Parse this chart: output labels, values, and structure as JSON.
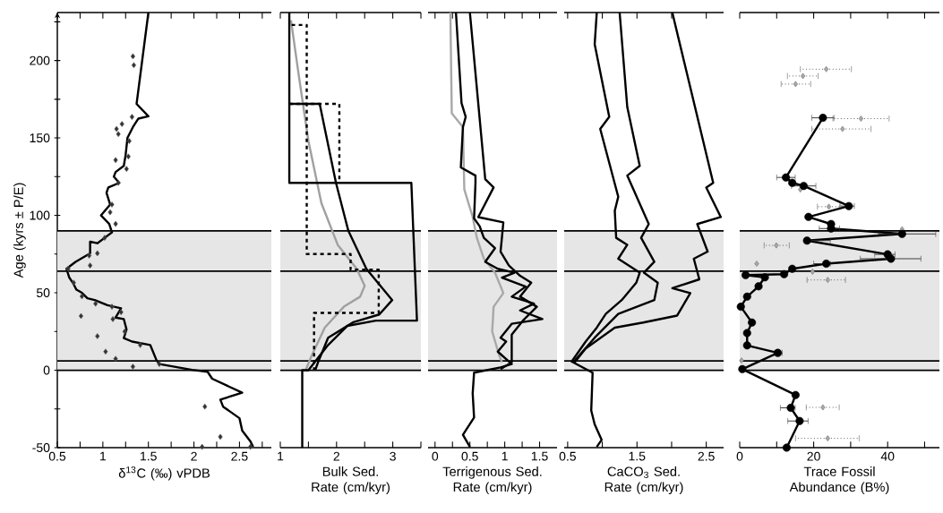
{
  "chart_data": [
    {
      "type": "line",
      "xlabel": "δ$^{13}$C (‰) vPDB",
      "ylabel": "Age (kyrs ± P/E)",
      "xlim": [
        0.5,
        2.85
      ],
      "ylim": [
        -50,
        231
      ],
      "xticks": [
        0.5,
        {
          "value": 0.75,
          "label": null
        },
        1,
        {
          "value": 1.25,
          "label": null
        },
        1.5,
        {
          "value": 1.75,
          "label": null
        },
        2,
        {
          "value": 2.25,
          "label": null
        },
        2.5,
        {
          "value": 2.75,
          "label": null
        }
      ],
      "yticks": [
        -50,
        {
          "value": -25,
          "label": null
        },
        0,
        {
          "value": 25,
          "label": null
        },
        50,
        {
          "value": 75,
          "label": null
        },
        100,
        {
          "value": 125,
          "label": null
        },
        150,
        {
          "value": 175,
          "label": null
        },
        200,
        {
          "value": 225,
          "label": null
        }
      ],
      "bands": [
        {
          "axis": "y",
          "from": 0,
          "to": 90,
          "color": "#e6e6e6"
        }
      ],
      "ref_lines": [
        {
          "axis": "y",
          "value": 90,
          "color": "#000000"
        },
        {
          "axis": "y",
          "value": 64,
          "color": "#000000"
        },
        {
          "axis": "y",
          "value": 6,
          "color": "#000000"
        },
        {
          "axis": "y",
          "value": 0,
          "color": "#000000"
        }
      ],
      "series": [
        {
          "type": "line",
          "color": "#000000",
          "x": [
            1.5,
            1.37,
            1.5,
            1.39,
            1.33,
            1.27,
            1.25,
            1.23,
            1.14,
            1.12,
            1.18,
            1.06,
            1.04,
            1.08,
            0.98,
            1.07,
            1.1,
            1.02,
            0.94,
            0.86,
            0.86,
            0.7,
            0.6,
            0.63,
            0.67,
            0.71,
            0.77,
            0.83,
            0.91,
            1.05,
            1.2,
            1.14,
            1.23,
            1.26,
            1.23,
            1.32,
            1.52,
            1.59,
            1.62,
            1.98,
            2.15,
            2.2,
            2.53,
            2.29,
            2.32,
            2.5,
            2.53,
            2.62,
            2.65
          ],
          "values": [
            231,
            172,
            164,
            162.5,
            157,
            150,
            139,
            132,
            128,
            125,
            121,
            118,
            114.5,
            107,
            100,
            94.5,
            89,
            85.5,
            82,
            83,
            75.5,
            70,
            65.5,
            60,
            56.5,
            52,
            50,
            46.5,
            45.3,
            42,
            40,
            34,
            33,
            26.3,
            20.8,
            18.5,
            16.3,
            6.3,
            4,
            0.2,
            -1,
            -5.5,
            -14.5,
            -19,
            -23.5,
            -31,
            -39,
            -46,
            -49.5
          ]
        },
        {
          "type": "scatter",
          "color": "#333333",
          "marker": "diamond",
          "x": [
            1.33,
            1.34,
            1.21,
            1.15,
            1.17,
            1.32,
            1.29,
            1.28,
            1.26,
            1.14,
            1.17,
            1.1,
            1.08,
            1.14,
            1.02,
            0.94,
            0.85,
            0.86,
            0.62,
            0.68,
            0.77,
            0.76,
            0.92,
            1.1,
            1.2,
            1.11,
            1.24,
            0.94,
            1.03,
            1.41,
            1.14,
            1.62,
            1.33,
            2.12,
            2.29,
            2.09,
            2.62
          ],
          "values": [
            202.7,
            197,
            159,
            155.8,
            152.5,
            163.6,
            148,
            138,
            130,
            135.7,
            121,
            107,
            102,
            94.5,
            85.5,
            75.5,
            74,
            67.6,
            65.5,
            56.5,
            47.7,
            35,
            43,
            41,
            37.5,
            33,
            25,
            22,
            12,
            16.3,
            7.4,
            4,
            2.3,
            -23.5,
            -43,
            -49.5,
            -49.5
          ]
        }
      ]
    },
    {
      "type": "line",
      "xlabel": "Bulk Sed. Rate (cm/kyr)",
      "xlim": [
        1,
        3.5
      ],
      "ylim": [
        -50,
        231
      ],
      "tick_labels": "x",
      "xticks": [
        1,
        {
          "value": 1.5,
          "label": null
        },
        2,
        {
          "value": 2.5,
          "label": null
        },
        3,
        {
          "value": 3.5,
          "label": null
        }
      ],
      "bands": [
        {
          "axis": "y",
          "from": 0,
          "to": 90,
          "color": "#e6e6e6"
        }
      ],
      "ref_lines": [
        {
          "axis": "y",
          "value": 90,
          "color": "#000000"
        },
        {
          "axis": "y",
          "value": 64,
          "color": "#000000"
        },
        {
          "axis": "y",
          "value": 6,
          "color": "#000000"
        },
        {
          "axis": "y",
          "value": 0,
          "color": "#000000"
        }
      ],
      "series": [
        {
          "type": "line",
          "color": "#a0a0a0",
          "x": [
            1.19,
            1.33,
            1.5,
            1.73,
            2.02,
            2.36,
            2.5,
            2.42,
            2.13,
            1.79,
            1.56,
            1.45
          ],
          "values": [
            226,
            190,
            148,
            108,
            81,
            65.5,
            54.5,
            47.5,
            41,
            27.5,
            9.6,
            0
          ]
        },
        {
          "type": "line",
          "color": "#000000",
          "line_style": "dashed",
          "x": [
            1.2,
            1.47,
            1.47,
            2.25,
            2.25,
            2.75,
            2.75,
            1.6,
            1.6
          ],
          "values": [
            223,
            223,
            75,
            75,
            65,
            65,
            37,
            37,
            0
          ]
        },
        {
          "type": "line",
          "color": "#000000",
          "line_style": "dashed",
          "x": [
            1.16,
            2.05,
            2.05
          ],
          "values": [
            172,
            172,
            121
          ]
        },
        {
          "type": "line",
          "color": "#000000",
          "x": [
            1.16,
            1.16,
            3.33,
            3.43,
            2.7,
            2.19,
            1.85,
            1.5,
            1.39,
            1.39
          ],
          "values": [
            231,
            121,
            121,
            32,
            32,
            28.6,
            16.3,
            0,
            0,
            -50
          ]
        },
        {
          "type": "line",
          "color": "#000000",
          "x": [
            1.16,
            1.7,
            1.99,
            2.21,
            2.53,
            2.99,
            2.76,
            2.3,
            1.85,
            1.67,
            1.62
          ],
          "values": [
            172,
            172,
            121,
            90,
            65.5,
            45.3,
            36,
            31,
            21,
            5,
            0
          ]
        }
      ]
    },
    {
      "type": "line",
      "xlabel": "Terrigenous Sed. Rate (cm/kyr)",
      "xlim": [
        -0.1,
        1.75
      ],
      "ylim": [
        -50,
        231
      ],
      "tick_labels": "x",
      "xticks": [
        0,
        {
          "value": 0.25,
          "label": null
        },
        0.5,
        {
          "value": 0.75,
          "label": null
        },
        1,
        {
          "value": 1.25,
          "label": null
        },
        1.5
      ],
      "bands": [
        {
          "axis": "y",
          "from": 0,
          "to": 90,
          "color": "#e6e6e6"
        }
      ],
      "ref_lines": [
        {
          "axis": "y",
          "value": 90,
          "color": "#000000"
        },
        {
          "axis": "y",
          "value": 64,
          "color": "#000000"
        },
        {
          "axis": "y",
          "value": 6,
          "color": "#000000"
        },
        {
          "axis": "y",
          "value": 0,
          "color": "#000000"
        }
      ],
      "series": [
        {
          "type": "line",
          "color": "#a8a8a8",
          "x": [
            0.22,
            0.24,
            0.4,
            0.42,
            0.54,
            0.6,
            0.7,
            0.86,
            0.98,
            0.84,
            0.82,
            0.92,
            0.96
          ],
          "values": [
            231,
            166,
            157,
            116.7,
            98.9,
            85.5,
            72,
            63,
            49.8,
            41,
            25,
            9.6,
            5.1
          ]
        },
        {
          "type": "line",
          "color": "#000000",
          "x": [
            0.5,
            0.72,
            0.84,
            0.62,
            0.98,
            0.94,
            1.06,
            1.22,
            1.38,
            1.22,
            1.46,
            1.26,
            1.1,
            1.1,
            0.94
          ],
          "values": [
            231,
            123.4,
            118,
            98.9,
            95.5,
            76.6,
            67.6,
            61,
            56.5,
            47.5,
            41,
            32,
            23,
            5.1,
            0.7
          ]
        },
        {
          "type": "line",
          "color": "#000000",
          "x": [
            0.3,
            0.38,
            0.44,
            0.4,
            0.37,
            0.58,
            0.58,
            0.56,
            0.64,
            0.7,
            0.86,
            0.72,
            0.9,
            1.14,
            0.96,
            1.3,
            1.1,
            1.42,
            1.22,
            1.54,
            1.1,
            0.94,
            1.02,
            0.9,
            1.1,
            0.94,
            0.56,
            0.54,
            0.56,
            0.4,
            0.5
          ],
          "values": [
            231,
            172.5,
            163.6,
            157,
            131,
            125.7,
            121,
            98,
            93,
            85.5,
            78.8,
            70,
            65.5,
            63,
            59.8,
            54,
            47.5,
            43,
            38.6,
            33,
            30,
            21,
            18.5,
            12,
            4,
            1.8,
            -1.6,
            -15,
            -30.6,
            -41.7,
            -49.5
          ]
        }
      ]
    },
    {
      "type": "line",
      "xlabel": "CaCO$_{3}$ Sed. Rate (cm/kyr)",
      "xlim": [
        0.45,
        2.75
      ],
      "ylim": [
        -50,
        231
      ],
      "tick_labels": "x",
      "xticks": [
        0.5,
        {
          "value": 1,
          "label": null
        },
        1.5,
        {
          "value": 2,
          "label": null
        },
        2.5
      ],
      "bands": [
        {
          "axis": "y",
          "from": 0,
          "to": 90,
          "color": "#e6e6e6"
        }
      ],
      "ref_lines": [
        {
          "axis": "y",
          "value": 90,
          "color": "#000000"
        },
        {
          "axis": "y",
          "value": 64,
          "color": "#000000"
        },
        {
          "axis": "y",
          "value": 6,
          "color": "#000000"
        },
        {
          "axis": "y",
          "value": 0,
          "color": "#000000"
        }
      ],
      "series": [
        {
          "type": "line",
          "color": "#000000",
          "x": [
            0.92,
            0.89,
            1.1,
            0.97,
            1.23,
            1.18,
            1.2,
            1.36,
            1.23,
            1.54,
            1.49,
            1.28,
            1.05,
            0.92,
            0.76,
            0.55
          ],
          "values": [
            231,
            210.5,
            163.6,
            155.8,
            112,
            103,
            85.5,
            81,
            72,
            63,
            56.5,
            45.3,
            36.4,
            27.5,
            18.5,
            5.1
          ]
        },
        {
          "type": "line",
          "color": "#000000",
          "x": [
            1.25,
            1.36,
            1.54,
            1.36,
            1.67,
            1.56,
            1.75,
            1.6,
            1.8,
            1.75,
            1.23,
            0.89,
            0.58,
            0.86,
            0.84,
            0.89,
            0.99,
            0.92
          ],
          "values": [
            231,
            170,
            132,
            125.7,
            94.4,
            85.5,
            70,
            63,
            56.5,
            45.3,
            36.4,
            21,
            5.1,
            -1.6,
            -26,
            -35,
            -45,
            -49.5
          ]
        },
        {
          "type": "line",
          "color": "#000000",
          "x": [
            2.01,
            2.6,
            2.5,
            2.71,
            2.37,
            2.52,
            2.32,
            2.4,
            2.01,
            2.27,
            2.08,
            1.59,
            1.18,
            0.76,
            0.6
          ],
          "values": [
            231,
            121,
            118,
            98.9,
            94.4,
            76.6,
            72,
            58.7,
            53,
            49.8,
            35.3,
            30.8,
            27.5,
            14,
            5.1
          ]
        }
      ]
    },
    {
      "type": "line",
      "xlabel": "Trace Fossil Abundance (B%)",
      "xlim": [
        0,
        54
      ],
      "ylim": [
        -50,
        231
      ],
      "tick_labels": "x",
      "xticks": [
        0,
        {
          "value": 10,
          "label": null
        },
        20,
        {
          "value": 30,
          "label": null
        },
        40,
        {
          "value": 50,
          "label": null
        }
      ],
      "bands": [
        {
          "axis": "y",
          "from": 0,
          "to": 90,
          "color": "#e6e6e6"
        }
      ],
      "ref_lines": [
        {
          "axis": "y",
          "value": 90,
          "color": "#000000"
        },
        {
          "axis": "y",
          "value": 64,
          "color": "#000000"
        },
        {
          "axis": "y",
          "value": 6,
          "color": "#000000"
        },
        {
          "axis": "y",
          "value": 0,
          "color": "#000000"
        }
      ],
      "series": [
        {
          "type": "scatter",
          "color": "#a8a8a8",
          "marker": "diamond",
          "line_style": "dotted",
          "x": [
            23.4,
            17.1,
            15.1,
            32.8,
            27.8,
            16.4,
            24.1,
            43.9,
            9.9,
            4.6,
            19.7,
            23.8,
            0.5,
            22.5,
            23.8
          ],
          "values": [
            194.4,
            190,
            184.8,
            162.5,
            155.8,
            116.7,
            105.6,
            91,
            80.6,
            68.8,
            63.6,
            58.3,
            6.3,
            -24,
            -44
          ],
          "xerrors": [
            [
              16.4,
              30.2
            ],
            [
              12.9,
              21.2
            ],
            [
              11.2,
              19.2
            ],
            [
              25.2,
              40.4
            ],
            [
              19.5,
              35.5
            ],
            null,
            [
              21,
              27
            ],
            null,
            [
              6.6,
              13.4
            ],
            null,
            null,
            [
              18.2,
              28.6
            ],
            null,
            [
              18,
              26.9
            ],
            [
              15.1,
              32.3
            ]
          ]
        },
        {
          "type": "line",
          "color": "#000000",
          "marker": "circle",
          "x": [
            22.5,
            12.5,
            14.2,
            17.3,
            29.5,
            18.6,
            24.7,
            24.7,
            43.9,
            18.2,
            40,
            40.9,
            23.4,
            14.2,
            12,
            1.6,
            6.8,
            5.1,
            2,
            0.3,
            3.3,
            2,
            2,
            10.3,
            0.7,
            15.1,
            13.8,
            16.2,
            12.7
          ],
          "values": [
            163,
            124.5,
            121,
            119,
            106,
            99,
            94.4,
            91.5,
            88,
            83.7,
            74.8,
            72,
            68.8,
            65.5,
            62,
            61.4,
            60,
            54.2,
            47.5,
            41,
            30.8,
            24,
            16,
            11.2,
            0.7,
            -16,
            -24.3,
            -32.8,
            -50
          ],
          "xerrors": [
            [
              19.5,
              25.5
            ],
            [
              10,
              15
            ],
            null,
            [
              14,
              20.6
            ],
            [
              27.3,
              31
            ],
            null,
            null,
            [
              21.5,
              27
            ],
            [
              37.5,
              53
            ],
            [
              17.5,
              24.5
            ],
            [
              36.5,
              42
            ],
            [
              32.6,
              49
            ],
            [
              20,
              24.5
            ],
            null,
            null,
            null,
            null,
            null,
            null,
            null,
            null,
            null,
            null,
            [
              9.5,
              11.5
            ],
            null,
            null,
            [
              11,
              15
            ],
            [
              13,
              18.5
            ],
            null
          ]
        }
      ]
    }
  ]
}
